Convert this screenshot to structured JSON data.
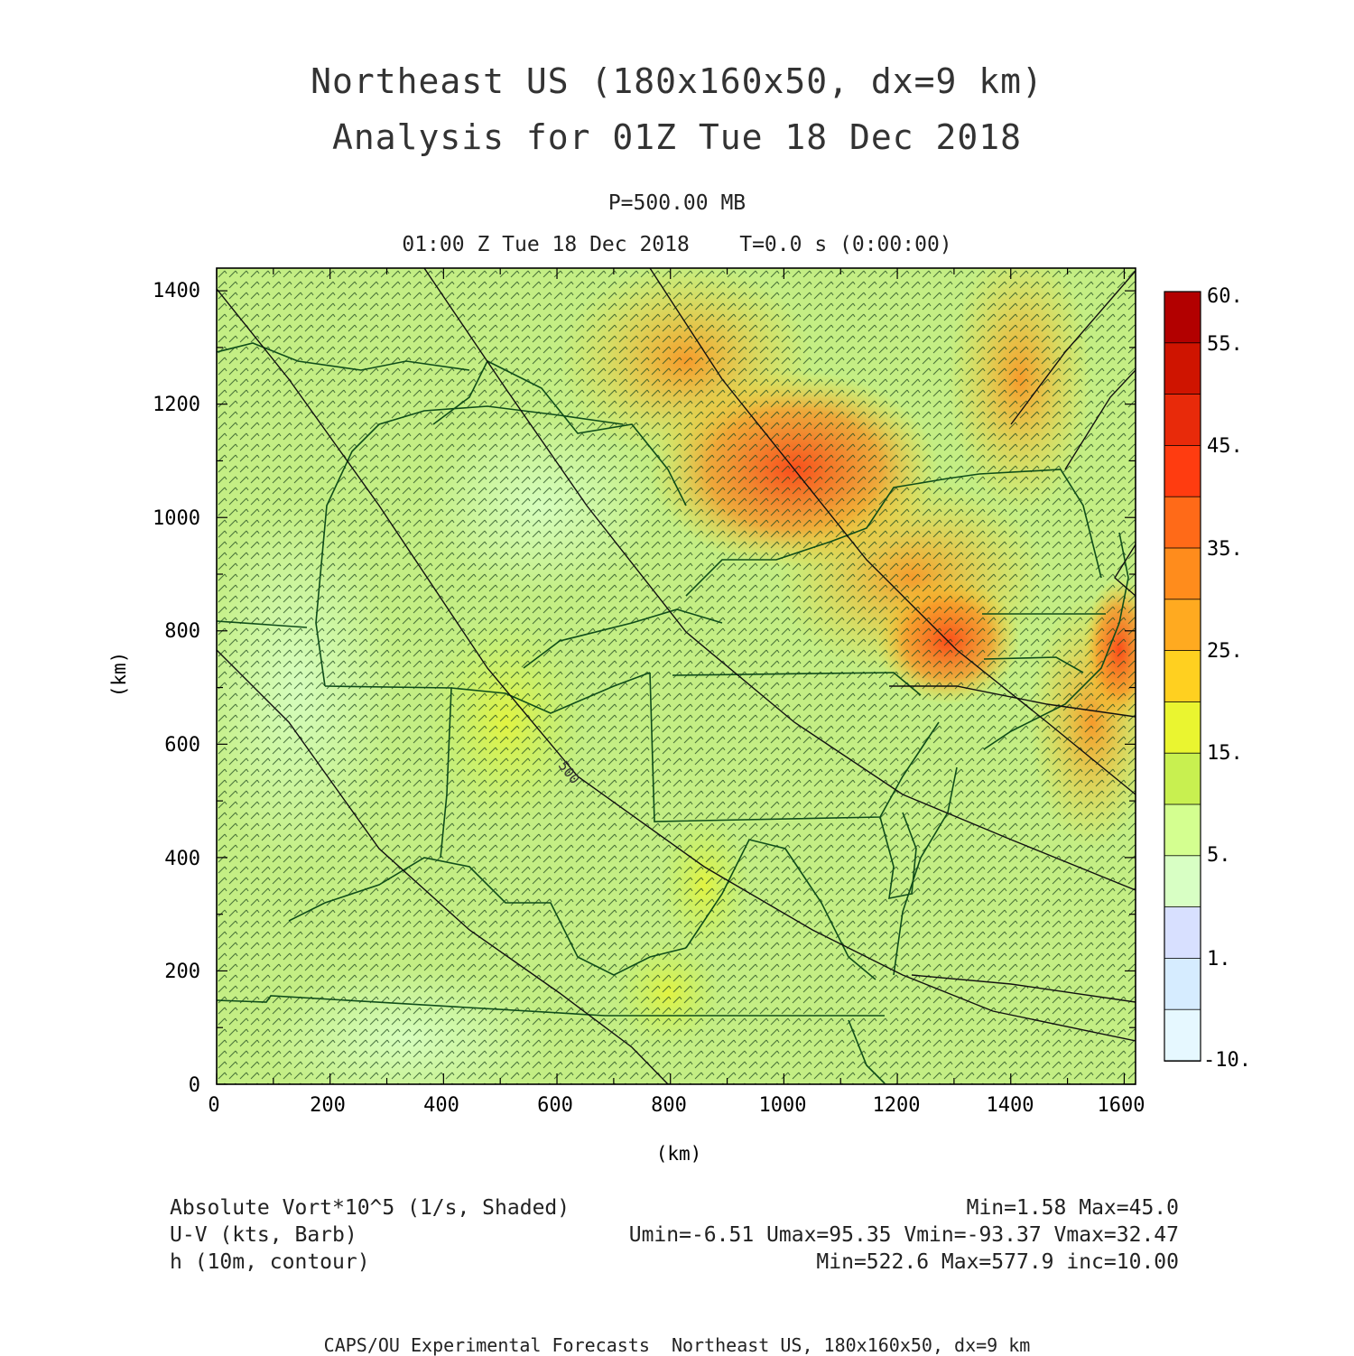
{
  "title": {
    "line1": "Northeast US (180x160x50, dx=9 km)",
    "line2": "Analysis for 01Z Tue 18 Dec 2018"
  },
  "subtitle": {
    "level": "P=500.00 MB",
    "time": "01:00 Z Tue 18 Dec 2018    T=0.0 s (0:00:00)"
  },
  "axes": {
    "xlabel": "(km)",
    "ylabel": "(km)",
    "xticks": [
      "0",
      "200",
      "400",
      "600",
      "800",
      "1000",
      "1200",
      "1400",
      "1600"
    ],
    "yticks": [
      "0",
      "200",
      "400",
      "600",
      "800",
      "1000",
      "1200",
      "1400"
    ],
    "xlim": [
      0,
      1620
    ],
    "ylim": [
      0,
      1440
    ]
  },
  "colorbar": {
    "labels": [
      "60.",
      "55.",
      "45.",
      "35.",
      "25.",
      "15.",
      "5.",
      "1.",
      "-10."
    ],
    "colors": [
      "#b20000",
      "#cf1400",
      "#e82a0a",
      "#ff3c10",
      "#ff6a18",
      "#ff8c1c",
      "#ffaa20",
      "#ffd020",
      "#eaf530",
      "#c8f050",
      "#d4ff90",
      "#d8ffc4",
      "#d8e0ff",
      "#d6ecff",
      "#e6f8ff"
    ]
  },
  "contour_label": "500",
  "legend": {
    "left": [
      "Absolute Vort*10^5 (1/s, Shaded)",
      "U-V (kts, Barb)",
      "h (10m, contour)"
    ],
    "right": [
      "Min=1.58 Max=45.0",
      "Umin=-6.51 Umax=95.35 Vmin=-93.37 Vmax=32.47",
      "Min=522.6 Max=577.9 inc=10.00"
    ]
  },
  "footer": "CAPS/OU Experimental Forecasts  Northeast US, 180x160x50, dx=9 km"
}
